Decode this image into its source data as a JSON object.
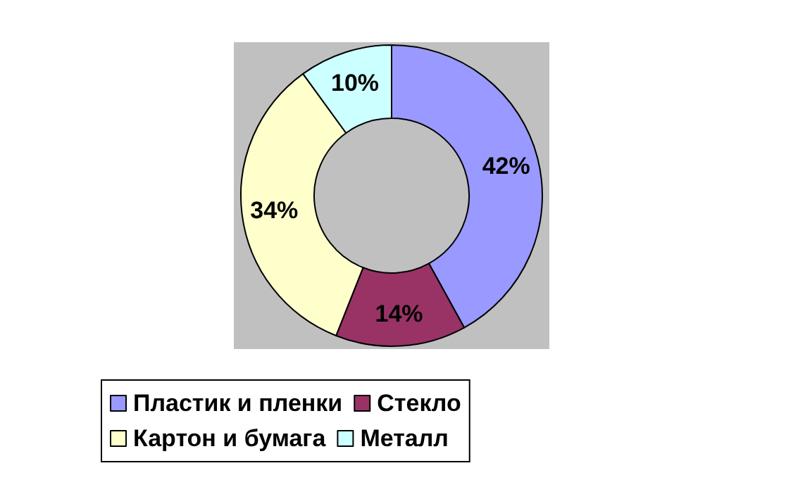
{
  "chart_data": {
    "type": "donut",
    "categories": [
      "Пластик и пленки",
      "Стекло",
      "Картон и бумага",
      "Металл"
    ],
    "values": [
      42,
      14,
      34,
      10
    ],
    "value_labels": [
      "42%",
      "14%",
      "34%",
      "10%"
    ],
    "colors": [
      "#9999ff",
      "#993366",
      "#ffffcc",
      "#ccffff"
    ],
    "legend": "bottom"
  }
}
